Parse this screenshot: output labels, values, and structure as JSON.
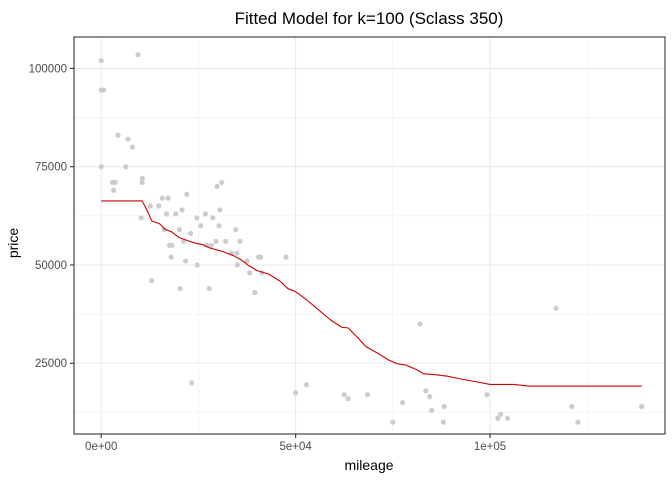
{
  "chart_data": {
    "type": "scatter",
    "title": "Fitted Model for k=100 (Sclass 350)",
    "xlabel": "mileage",
    "ylabel": "price",
    "xlim": [
      -7000,
      145000
    ],
    "ylim": [
      7000,
      108000
    ],
    "x_ticks": [
      0,
      50000,
      100000
    ],
    "x_tick_labels": [
      "0e+00",
      "5e+04",
      "1e+05"
    ],
    "y_ticks": [
      25000,
      50000,
      75000,
      100000
    ],
    "y_tick_labels": [
      "25000",
      "50000",
      "75000",
      "100000"
    ],
    "grid": true,
    "point_color": "#cccccc",
    "line_color": "#cc0000",
    "series": [
      {
        "type": "scatter",
        "points": [
          [
            0,
            102000
          ],
          [
            0,
            94500
          ],
          [
            600,
            94500
          ],
          [
            0,
            75000
          ],
          [
            2900,
            71000
          ],
          [
            3200,
            69000
          ],
          [
            3600,
            71000
          ],
          [
            4300,
            83000
          ],
          [
            6300,
            75000
          ],
          [
            6900,
            82000
          ],
          [
            8000,
            80000
          ],
          [
            9500,
            103500
          ],
          [
            10300,
            62000
          ],
          [
            10500,
            71000
          ],
          [
            10600,
            72000
          ],
          [
            12600,
            65000
          ],
          [
            13000,
            46000
          ],
          [
            14800,
            65000
          ],
          [
            15700,
            67000
          ],
          [
            16200,
            59000
          ],
          [
            16800,
            63000
          ],
          [
            17200,
            67000
          ],
          [
            17600,
            55000
          ],
          [
            18000,
            52000
          ],
          [
            18200,
            55000
          ],
          [
            19200,
            63000
          ],
          [
            20100,
            59000
          ],
          [
            20300,
            44000
          ],
          [
            20800,
            64000
          ],
          [
            21200,
            56000
          ],
          [
            21700,
            51000
          ],
          [
            22000,
            68000
          ],
          [
            23000,
            58000
          ],
          [
            23300,
            20000
          ],
          [
            24600,
            62000
          ],
          [
            24700,
            50000
          ],
          [
            25600,
            60000
          ],
          [
            26800,
            63000
          ],
          [
            27100,
            55000
          ],
          [
            27800,
            44000
          ],
          [
            28300,
            55000
          ],
          [
            28700,
            62000
          ],
          [
            29500,
            56000
          ],
          [
            29800,
            70000
          ],
          [
            30300,
            60000
          ],
          [
            30500,
            64000
          ],
          [
            31000,
            71000
          ],
          [
            32000,
            56000
          ],
          [
            33500,
            53000
          ],
          [
            34600,
            59000
          ],
          [
            34900,
            53000
          ],
          [
            35000,
            50000
          ],
          [
            35700,
            56000
          ],
          [
            37500,
            51000
          ],
          [
            38200,
            48000
          ],
          [
            39500,
            43000
          ],
          [
            40500,
            52000
          ],
          [
            41000,
            52000
          ],
          [
            41300,
            48000
          ],
          [
            47500,
            52000
          ],
          [
            50000,
            17500
          ],
          [
            52800,
            19500
          ],
          [
            62500,
            17000
          ],
          [
            63500,
            16000
          ],
          [
            68500,
            17000
          ],
          [
            75000,
            10000
          ],
          [
            77500,
            15000
          ],
          [
            82000,
            35000
          ],
          [
            83500,
            18000
          ],
          [
            84500,
            16500
          ],
          [
            85000,
            13000
          ],
          [
            88000,
            10000
          ],
          [
            88200,
            14000
          ],
          [
            99200,
            17000
          ],
          [
            102000,
            11000
          ],
          [
            102700,
            12000
          ],
          [
            104500,
            11000
          ],
          [
            117000,
            39000
          ],
          [
            121000,
            14000
          ],
          [
            122600,
            10000
          ],
          [
            139000,
            14000
          ]
        ]
      },
      {
        "type": "line",
        "points": [
          [
            0,
            66300
          ],
          [
            10500,
            66300
          ],
          [
            12000,
            63500
          ],
          [
            13000,
            61200
          ],
          [
            15000,
            60500
          ],
          [
            16500,
            59000
          ],
          [
            18000,
            58500
          ],
          [
            20000,
            57000
          ],
          [
            22000,
            56300
          ],
          [
            24000,
            55600
          ],
          [
            26000,
            55200
          ],
          [
            28000,
            54300
          ],
          [
            31000,
            53500
          ],
          [
            34000,
            52400
          ],
          [
            36000,
            51300
          ],
          [
            38000,
            49800
          ],
          [
            40000,
            48600
          ],
          [
            43000,
            47700
          ],
          [
            46000,
            45900
          ],
          [
            48000,
            44000
          ],
          [
            50000,
            43200
          ],
          [
            53000,
            41000
          ],
          [
            56000,
            38500
          ],
          [
            59000,
            36000
          ],
          [
            62000,
            34100
          ],
          [
            63500,
            34000
          ],
          [
            66000,
            31500
          ],
          [
            68000,
            29300
          ],
          [
            71000,
            27600
          ],
          [
            74000,
            25800
          ],
          [
            76000,
            24900
          ],
          [
            78500,
            24500
          ],
          [
            81000,
            23400
          ],
          [
            83000,
            22300
          ],
          [
            86000,
            22100
          ],
          [
            89000,
            21700
          ],
          [
            93000,
            20900
          ],
          [
            97000,
            20200
          ],
          [
            100000,
            19600
          ],
          [
            106000,
            19600
          ],
          [
            110000,
            19200
          ],
          [
            120000,
            19200
          ],
          [
            139000,
            19200
          ]
        ]
      }
    ]
  }
}
